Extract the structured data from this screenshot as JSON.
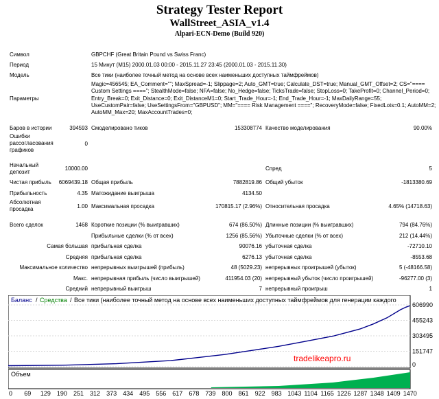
{
  "header": {
    "title": "Strategy Tester Report",
    "expert": "WallStreet_ASIA_v1.4",
    "server": "Alpari-ECN-Demo (Build 920)"
  },
  "info": {
    "symbol_label": "Символ",
    "symbol_value": "GBPCHF (Great Britain Pound vs Swiss Franc)",
    "period_label": "Период",
    "period_value": "15 Минут (M15) 2000.01.03 00:00 - 2015.11.27 23:45 (2000.01.03 - 2015.11.30)",
    "model_label": "Модель",
    "model_value": "Все тики (наиболее точный метод на основе всех наименьших доступных таймфреймов)",
    "params_label": "Параметры",
    "params_value": "Magic=456545; EA_Comment=\"\"; MaxSpread=-1; Slippage=2; Auto_GMT=true; Calculate_DST=true; Manual_GMT_Offset=2; CS=\"==== Custom Settings ====\"; StealthMode=false; NFA=false; No_Hedge=false; TicksTrade=false; StopLoss=0; TakeProfit=0; Channel_Period=0; Entry_Break=0; Exit_Distance=0; Exit_DistanceM1=0; Start_Trade_Hour=-1; End_Trade_Hour=-1; MaxDailyRange=55; UseCustomPair=false; UseSettingsFrom=\"GBPUSD\"; MM=\"==== Risk Management ====\"; RecoveryMode=false; FixedLots=0.1; AutoMM=2; AutoMM_Max=20; MaxAccountTrades=0;"
  },
  "stats": {
    "bars_label": "Баров в истории",
    "bars_value": "394593",
    "ticks_label": "Смоделировано тиков",
    "ticks_value": "153308774",
    "quality_label": "Качество моделирования",
    "quality_value": "90.00%",
    "errors_label": "Ошибки рассогласования графиков",
    "errors_value": "0",
    "deposit_label": "Начальный депозит",
    "deposit_value": "10000.00",
    "spread_label": "Спред",
    "spread_value": "5",
    "netprofit_label": "Чистая прибыль",
    "netprofit_value": "6069439.18",
    "grossprofit_label": "Общая прибыль",
    "grossprofit_value": "7882819.86",
    "grossloss_label": "Общий убыток",
    "grossloss_value": "-1813380.69",
    "pf_label": "Прибыльность",
    "pf_value": "4.35",
    "expected_label": "Матожидание выигрыша",
    "expected_value": "4134.50",
    "absdd_label": "Абсолютная просадка",
    "absdd_value": "1.00",
    "maxdd_label": "Максимальная просадка",
    "maxdd_value": "170815.17 (2.96%)",
    "reldd_label": "Относительная просадка",
    "reldd_value": "4.65% (14718.63)",
    "trades_label": "Всего сделок",
    "trades_value": "1468",
    "short_label": "Короткие позиции (% выигравших)",
    "short_value": "674 (86.50%)",
    "long_label": "Длинные позиции (% выигравших)",
    "long_value": "794 (84.76%)",
    "profit_trades_label": "Прибыльные сделки (% от всех)",
    "profit_trades_value": "1256 (85.56%)",
    "loss_trades_label": "Убыточные сделки (% от всех)",
    "loss_trades_value": "212 (14.44%)",
    "largest_label": "Самая большая",
    "largest_profit_label": "прибыльная сделка",
    "largest_profit_value": "90076.16",
    "largest_loss_label": "убыточная сделка",
    "largest_loss_value": "-72710.10",
    "average_label": "Средняя",
    "average_profit_label": "прибыльная сделка",
    "average_profit_value": "6276.13",
    "average_loss_label": "убыточная сделка",
    "average_loss_value": "-8553.68",
    "maxcount_label": "Максимальное количество",
    "maxcons_wins_label": "непрерывных выигрышей (прибыль)",
    "maxcons_wins_value": "48 (5029.23)",
    "maxcons_losses_label": "непрерывных проигрышей (убыток)",
    "maxcons_losses_value": "5 (-48166.58)",
    "max_label": "Макс.",
    "maxcons_profit_label": "непрерывная прибыль (число выигрышей)",
    "maxcons_profit_value": "411954.03 (20)",
    "maxcons_loss_label": "непрерывный убыток (число проигрышей)",
    "maxcons_loss_value": "-96277.00 (3)",
    "avg_label": "Средний",
    "avgcons_wins_label": "непрерывный выигрыш",
    "avgcons_wins_value": "7",
    "avgcons_losses_label": "непрерывный проигрыш",
    "avgcons_losses_value": "1"
  },
  "chart": {
    "legend_balance": "Баланс",
    "legend_sep1": "/",
    "legend_equity": "Средства",
    "legend_sep2": "/",
    "legend_model": "Все тики (наиболее точный метод на основе всех наименьших доступных таймфреймов для генерации каждого",
    "volume_label": "Объем",
    "watermark": "tradelikeapro.ru",
    "colors": {
      "balance": "#00008b",
      "equity": "#008000",
      "volume": "#00b050"
    }
  },
  "chart_data": {
    "type": "line",
    "series": [
      {
        "name": "Баланс",
        "x": [
          0,
          200,
          400,
          600,
          700,
          800,
          900,
          1000,
          1100,
          1200,
          1300,
          1350,
          1400,
          1450,
          1470,
          1486
        ],
        "values": [
          10000,
          15000,
          30000,
          60000,
          90000,
          120000,
          160000,
          200000,
          250000,
          300000,
          370000,
          420000,
          480000,
          560000,
          585000,
          600000
        ]
      }
    ],
    "x_ticks": [
      "0",
      "69",
      "129",
      "190",
      "251",
      "312",
      "373",
      "434",
      "495",
      "556",
      "617",
      "678",
      "739",
      "800",
      "861",
      "922",
      "983",
      "1043",
      "1104",
      "1165",
      "1226",
      "1287",
      "1348",
      "1409",
      "1470"
    ],
    "y_ticks": [
      "606990",
      "455243",
      "303495",
      "151747",
      "0"
    ],
    "ylim": [
      0,
      606990
    ],
    "xlim": [
      0,
      1486
    ]
  }
}
